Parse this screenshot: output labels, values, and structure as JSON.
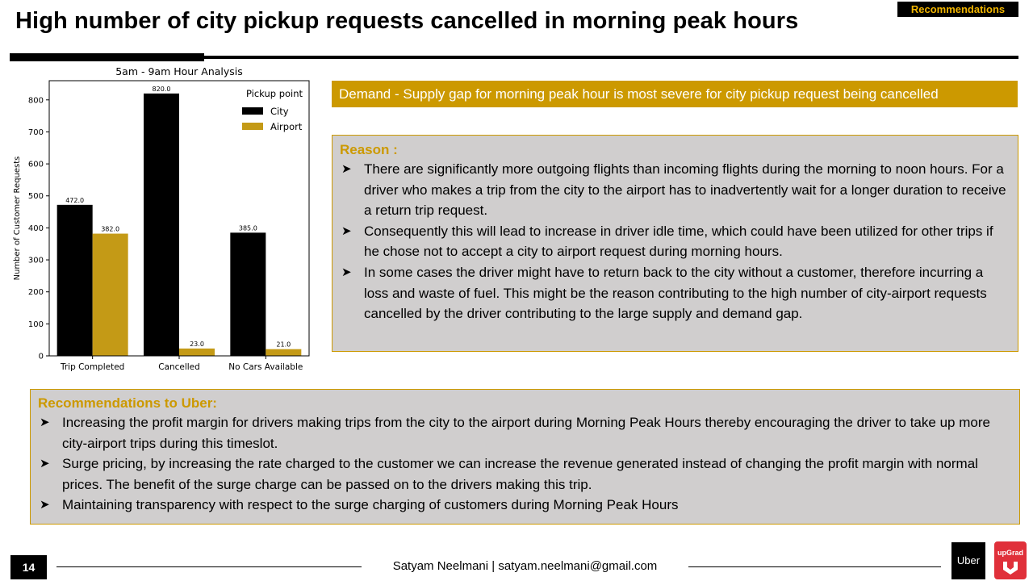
{
  "header": {
    "section_tag": "Recommendations",
    "title": "High number of city pickup requests cancelled in morning peak hours"
  },
  "chart_data": {
    "type": "bar",
    "title": "5am - 9am Hour Analysis",
    "xlabel": "",
    "ylabel": "Number of Customer Requests",
    "categories": [
      "Trip Completed",
      "Cancelled",
      "No Cars Available"
    ],
    "series": [
      {
        "name": "City",
        "values": [
          472.0,
          820.0,
          385.0
        ],
        "color": "#000000"
      },
      {
        "name": "Airport",
        "values": [
          382.0,
          23.0,
          21.0
        ],
        "color": "#c49a16"
      }
    ],
    "legend_title": "Pickup point",
    "legend_position": "top-right",
    "ylim": [
      0,
      860
    ],
    "yticks": [
      0,
      100,
      200,
      300,
      400,
      500,
      600,
      700,
      800
    ],
    "grid": false,
    "data_labels": true
  },
  "demand_banner": "Demand - Supply gap for morning peak hour is most severe for city pickup request being cancelled",
  "reason": {
    "heading": "Reason :",
    "bullets": [
      "There are significantly more outgoing flights than incoming flights during the morning to noon hours. For a driver who makes a trip from the city to the airport has to inadvertently wait for a longer duration to receive a return trip request.",
      "Consequently this will lead to increase in driver idle time, which could have been utilized for other trips if he chose not to accept a city to airport request during morning hours.",
      "In some cases the driver might have to return back to the city without a customer, therefore incurring a loss and waste of fuel. This might be the reason contributing to the high number of city-airport requests cancelled by the driver contributing to the large supply and demand gap."
    ]
  },
  "recommendations": {
    "heading": "Recommendations to Uber:",
    "bullets": [
      "Increasing the profit margin for drivers making trips from the city to the airport during Morning Peak Hours thereby encouraging the driver to take up more city-airport trips during this timeslot.",
      "Surge pricing, by increasing the rate charged to the customer we can increase the revenue generated instead of changing the profit margin with normal prices. The benefit of the surge charge can be passed on to the drivers making this trip.",
      "Maintaining transparency with respect to the surge charging of customers during Morning Peak Hours"
    ]
  },
  "footer": {
    "page_number": "14",
    "credit": "Satyam Neelmani | satyam.neelmani@gmail.com",
    "uber_logo": "Uber",
    "upgrad_logo": "upGrad"
  },
  "icons": {
    "bullet": "arrow-bullet-icon",
    "upgrad": "upgrad-logo-icon"
  },
  "colors": {
    "accent": "#cc9900",
    "box_background": "#d0cece",
    "city_bar": "#000000",
    "airport_bar": "#c49a16",
    "upgrad_red": "#e0303a"
  }
}
